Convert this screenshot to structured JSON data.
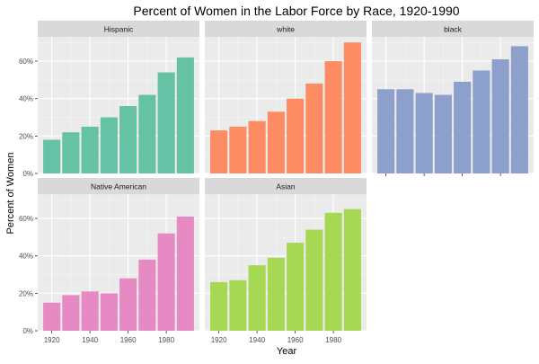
{
  "chart_data": {
    "type": "bar",
    "title": "Percent of Women in the Labor Force by Race, 1920-1990",
    "xlabel": "Year",
    "ylabel": "Percent of Women",
    "x": [
      1920,
      1930,
      1940,
      1950,
      1960,
      1970,
      1980,
      1990
    ],
    "x_tick_labels": [
      "1920",
      "1940",
      "1960",
      "1980"
    ],
    "x_tick_values": [
      1920,
      1940,
      1960,
      1980
    ],
    "y_tick_labels": [
      "0%",
      "20%",
      "40%",
      "60%"
    ],
    "y_tick_values": [
      0,
      20,
      40,
      60
    ],
    "ylim": [
      0,
      73
    ],
    "grid": true,
    "facets": [
      {
        "name": "Hispanic",
        "color": "#66C2A5",
        "values": [
          18,
          22,
          25,
          30,
          36,
          42,
          54,
          62
        ]
      },
      {
        "name": "white",
        "color": "#FC8D62",
        "values": [
          23,
          25,
          28,
          33,
          40,
          48,
          60,
          70
        ]
      },
      {
        "name": "black",
        "color": "#8DA0CB",
        "values": [
          45,
          45,
          43,
          42,
          49,
          55,
          61,
          68
        ]
      },
      {
        "name": "Native American",
        "color": "#E78AC3",
        "values": [
          15,
          19,
          21,
          20,
          28,
          38,
          52,
          61
        ]
      },
      {
        "name": "Asian",
        "color": "#A6D854",
        "values": [
          26,
          27,
          35,
          39,
          47,
          54,
          63,
          65
        ]
      }
    ]
  }
}
